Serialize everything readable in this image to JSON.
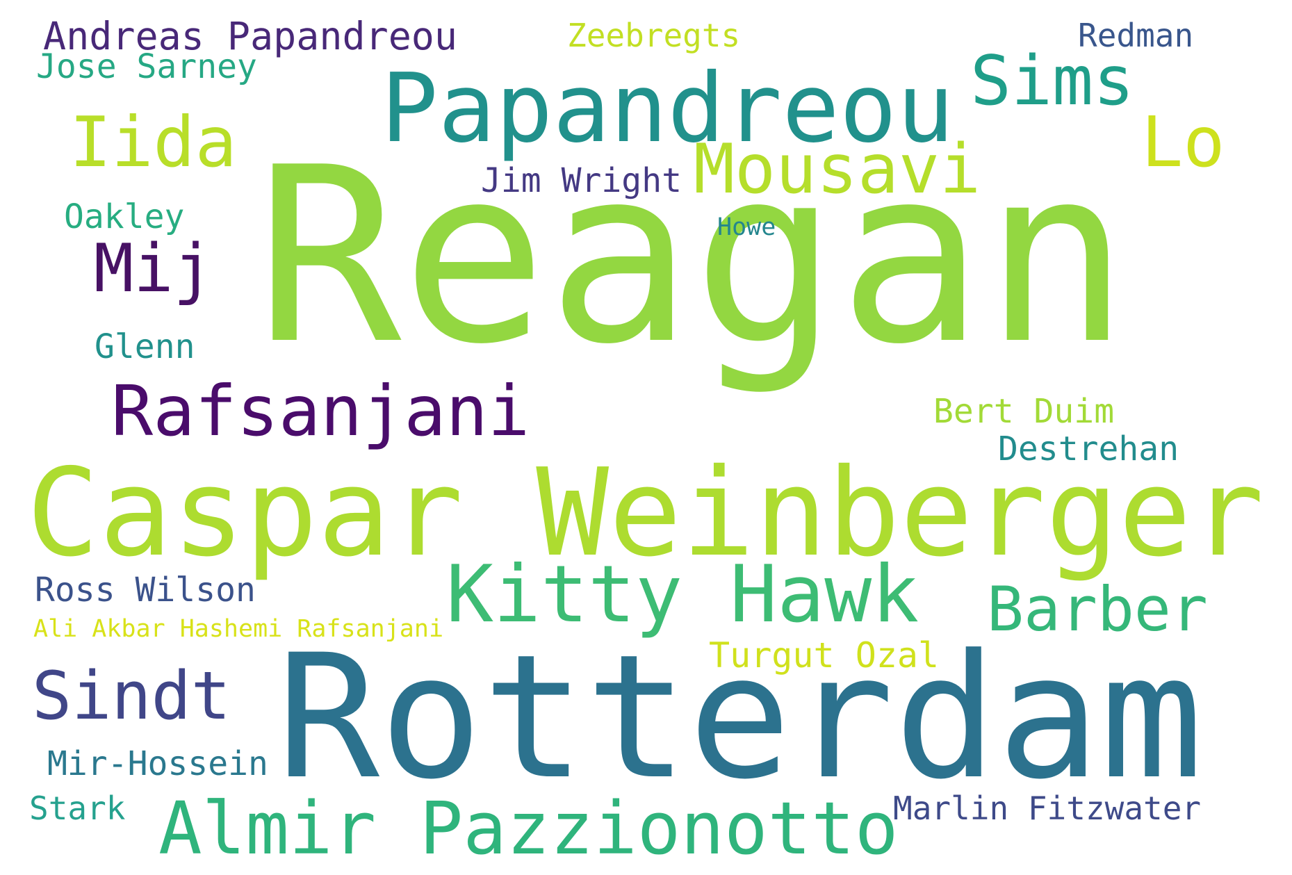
{
  "words": [
    {
      "id": "reagan",
      "text": "Reagan",
      "color": "#93d741"
    },
    {
      "id": "rotterdam",
      "text": "Rotterdam",
      "color": "#2c728e"
    },
    {
      "id": "caspar-weinberger",
      "text": "Caspar Weinberger",
      "color": "#addc30"
    },
    {
      "id": "papandreou",
      "text": "Papandreou",
      "color": "#21918c"
    },
    {
      "id": "kitty-hawk",
      "text": "Kitty Hawk",
      "color": "#3dbc74"
    },
    {
      "id": "almir-pazzionotto",
      "text": "Almir Pazzionotto",
      "color": "#2fb47c"
    },
    {
      "id": "rafsanjani",
      "text": "Rafsanjani",
      "color": "#4a0c6b"
    },
    {
      "id": "mousavi",
      "text": "Mousavi",
      "color": "#b5de2b"
    },
    {
      "id": "iida",
      "text": "Iida",
      "color": "#b8de29"
    },
    {
      "id": "lo",
      "text": "Lo",
      "color": "#cde11d"
    },
    {
      "id": "sims",
      "text": "Sims",
      "color": "#1f9e89"
    },
    {
      "id": "sindt",
      "text": "Sindt",
      "color": "#404688"
    },
    {
      "id": "barber",
      "text": "Barber",
      "color": "#35b779"
    },
    {
      "id": "mij",
      "text": "Mij",
      "color": "#471164"
    },
    {
      "id": "andreas-papandreou",
      "text": "Andreas Papandreou",
      "color": "#482878"
    },
    {
      "id": "jim-wright",
      "text": "Jim Wright",
      "color": "#443983"
    },
    {
      "id": "turgut-ozal",
      "text": "Turgut Ozal",
      "color": "#d0e11c"
    },
    {
      "id": "destrehan",
      "text": "Destrehan",
      "color": "#228c8d"
    },
    {
      "id": "bert-duim",
      "text": "Bert Duim",
      "color": "#a2da37"
    },
    {
      "id": "marlin-fitzwater",
      "text": "Marlin Fitzwater",
      "color": "#3e4a89"
    },
    {
      "id": "ross-wilson",
      "text": "Ross Wilson",
      "color": "#3b528b"
    },
    {
      "id": "mir-hossein",
      "text": "Mir-Hossein",
      "color": "#2a788e"
    },
    {
      "id": "jose-sarney",
      "text": "Jose Sarney",
      "color": "#26a884"
    },
    {
      "id": "zeebregts",
      "text": "Zeebregts",
      "color": "#c2df23"
    },
    {
      "id": "redman",
      "text": "Redman",
      "color": "#39568c"
    },
    {
      "id": "glenn",
      "text": "Glenn",
      "color": "#21918c"
    },
    {
      "id": "oakley",
      "text": "Oakley",
      "color": "#27ad81"
    },
    {
      "id": "stark",
      "text": "Stark",
      "color": "#25a18e"
    },
    {
      "id": "ali-akbar-hashemi-rafsanjani",
      "text": "Ali Akbar Hashemi Rafsanjani",
      "color": "#d8e219"
    },
    {
      "id": "howe",
      "text": "Howe",
      "color": "#24868e"
    }
  ]
}
